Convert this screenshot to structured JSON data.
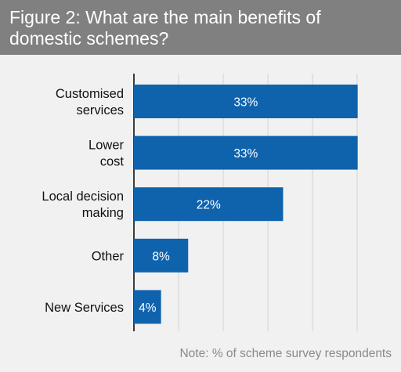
{
  "title": "Figure 2: What are the main benefits of domestic schemes?",
  "note": "Note: % of scheme survey respondents",
  "colors": {
    "header": "#808080",
    "background": "#f1f1f1",
    "bar": "#0f63ad",
    "gridline": "#d4d4d4",
    "axis": "#000000"
  },
  "chart_data": {
    "type": "bar",
    "orientation": "horizontal",
    "categories": [
      [
        "Customised",
        "services"
      ],
      [
        "Lower",
        "cost"
      ],
      [
        "Local decision",
        "making"
      ],
      [
        "Other"
      ],
      [
        "New Services"
      ]
    ],
    "values": [
      33,
      33,
      22,
      8,
      4
    ],
    "data_labels": [
      "33%",
      "33%",
      "22%",
      "8%",
      "4%"
    ],
    "xlim": [
      0,
      35
    ],
    "grid": true
  }
}
